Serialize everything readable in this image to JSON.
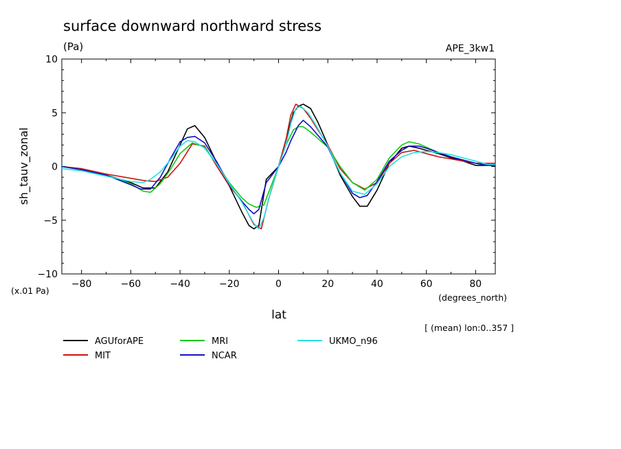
{
  "chart_data": {
    "type": "line",
    "title": "surface downward northward stress",
    "units": "(Pa)",
    "experiment": "APE_3kw1",
    "ylabel": "sh_tauv_zonal",
    "xlabel": "lat",
    "x_units": "(degrees_north)",
    "y_scale_label": "(x.01 Pa)",
    "footnote": "[ (mean) lon:0..357 ]",
    "xlim": [
      -88,
      88
    ],
    "ylim": [
      -10,
      10
    ],
    "x_ticks": [
      -80,
      -60,
      -40,
      -20,
      0,
      20,
      40,
      60,
      80
    ],
    "x_tick_labels": [
      "−80",
      "−60",
      "−40",
      "−20",
      "0",
      "20",
      "40",
      "60",
      "80"
    ],
    "y_ticks": [
      -10,
      -5,
      0,
      5,
      10
    ],
    "y_tick_labels": [
      "−10",
      "−5",
      "0",
      "5",
      "10"
    ],
    "grid": false,
    "legend_position": "bottom",
    "series": [
      {
        "name": "AGUforAPE",
        "color": "#000000",
        "x": [
          -88,
          -80,
          -70,
          -60,
          -55,
          -50,
          -45,
          -40,
          -37,
          -34,
          -30,
          -25,
          -20,
          -15,
          -12,
          -10,
          -8,
          -5,
          0,
          3,
          6,
          8,
          10,
          13,
          16,
          20,
          25,
          30,
          33,
          36,
          40,
          45,
          50,
          53,
          57,
          60,
          65,
          70,
          75,
          80,
          85,
          88
        ],
        "y": [
          0.0,
          -0.3,
          -0.8,
          -1.5,
          -2.0,
          -2.0,
          -0.5,
          2.0,
          3.5,
          3.8,
          2.7,
          0.3,
          -1.8,
          -4.2,
          -5.5,
          -5.8,
          -5.5,
          -1.2,
          0.0,
          2.5,
          5.0,
          5.6,
          5.8,
          5.4,
          4.1,
          2.0,
          -0.8,
          -2.8,
          -3.7,
          -3.7,
          -2.2,
          0.3,
          1.7,
          1.9,
          1.7,
          1.5,
          1.2,
          0.8,
          0.5,
          0.1,
          0.1,
          0.2
        ]
      },
      {
        "name": "MIT",
        "color": "#d01010",
        "x": [
          -88,
          -80,
          -70,
          -60,
          -55,
          -50,
          -45,
          -40,
          -35,
          -30,
          -25,
          -20,
          -15,
          -10,
          -7,
          -4,
          0,
          3,
          5,
          7,
          10,
          13,
          16,
          20,
          25,
          30,
          35,
          40,
          45,
          50,
          55,
          60,
          65,
          70,
          75,
          80,
          85,
          88
        ],
        "y": [
          0.0,
          -0.2,
          -0.7,
          -1.1,
          -1.3,
          -1.4,
          -1.0,
          0.3,
          2.1,
          1.9,
          0.0,
          -1.8,
          -3.2,
          -5.4,
          -5.8,
          -3.0,
          0.0,
          2.5,
          4.8,
          5.8,
          5.4,
          4.5,
          3.4,
          2.0,
          -0.2,
          -1.5,
          -2.1,
          -1.5,
          0.3,
          1.3,
          1.5,
          1.2,
          0.9,
          0.7,
          0.5,
          0.3,
          0.3,
          0.3
        ]
      },
      {
        "name": "MRI",
        "color": "#10c810",
        "x": [
          -88,
          -80,
          -70,
          -60,
          -55,
          -52,
          -48,
          -44,
          -40,
          -35,
          -30,
          -25,
          -20,
          -15,
          -12,
          -9,
          -6,
          0,
          3,
          6,
          8,
          10,
          13,
          16,
          20,
          25,
          30,
          35,
          40,
          45,
          50,
          53,
          57,
          60,
          65,
          70,
          75,
          80,
          85,
          88
        ],
        "y": [
          0.0,
          -0.3,
          -0.8,
          -1.6,
          -2.3,
          -2.4,
          -1.6,
          -0.3,
          1.2,
          2.2,
          1.8,
          0.2,
          -1.5,
          -2.9,
          -3.5,
          -3.8,
          -3.6,
          0.0,
          2.0,
          3.4,
          3.7,
          3.7,
          3.2,
          2.6,
          1.8,
          0.0,
          -1.5,
          -2.2,
          -1.2,
          0.8,
          2.0,
          2.3,
          2.1,
          1.8,
          1.3,
          0.9,
          0.6,
          0.3,
          0.1,
          0.1
        ]
      },
      {
        "name": "NCAR",
        "color": "#1010c8",
        "x": [
          -88,
          -80,
          -70,
          -60,
          -56,
          -52,
          -48,
          -44,
          -40,
          -37,
          -34,
          -30,
          -25,
          -20,
          -15,
          -12,
          -10,
          -8,
          -5,
          0,
          3,
          5,
          8,
          10,
          13,
          16,
          20,
          25,
          30,
          33,
          36,
          40,
          45,
          50,
          53,
          57,
          60,
          65,
          70,
          75,
          80,
          85,
          88
        ],
        "y": [
          0.0,
          -0.3,
          -0.8,
          -1.7,
          -2.1,
          -2.1,
          -1.0,
          0.7,
          2.3,
          2.7,
          2.8,
          2.2,
          0.4,
          -1.7,
          -3.2,
          -4.0,
          -4.4,
          -4.0,
          -1.5,
          0.0,
          1.3,
          2.4,
          3.8,
          4.3,
          3.7,
          2.9,
          1.8,
          -0.6,
          -2.5,
          -2.9,
          -2.7,
          -1.4,
          0.5,
          1.5,
          1.9,
          1.9,
          1.7,
          1.3,
          0.9,
          0.6,
          0.3,
          0.1,
          0.1
        ]
      },
      {
        "name": "UKMO_n96",
        "color": "#20e0e8",
        "x": [
          -88,
          -80,
          -70,
          -60,
          -55,
          -52,
          -48,
          -44,
          -40,
          -37,
          -34,
          -30,
          -25,
          -20,
          -15,
          -10,
          -8,
          -6,
          -3,
          0,
          3,
          5,
          7,
          9,
          12,
          15,
          20,
          25,
          30,
          35,
          40,
          45,
          50,
          55,
          60,
          65,
          70,
          75,
          80,
          85,
          88
        ],
        "y": [
          -0.2,
          -0.4,
          -0.9,
          -1.4,
          -1.5,
          -1.2,
          -0.5,
          0.6,
          1.9,
          2.4,
          2.3,
          1.7,
          0.2,
          -1.6,
          -3.3,
          -5.3,
          -5.8,
          -4.8,
          -2.2,
          0.0,
          2.0,
          4.0,
          5.4,
          5.6,
          5.0,
          3.9,
          1.9,
          -0.6,
          -2.3,
          -2.6,
          -1.6,
          0.0,
          0.9,
          1.3,
          1.4,
          1.3,
          1.1,
          0.8,
          0.5,
          0.2,
          0.2
        ]
      }
    ]
  }
}
